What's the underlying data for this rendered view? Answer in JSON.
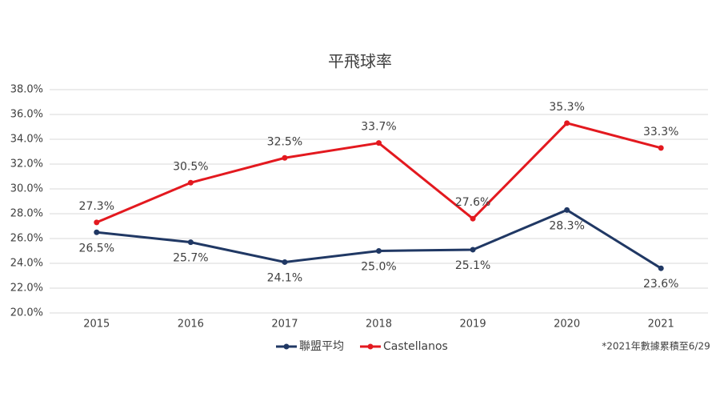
{
  "chart_data": {
    "type": "line",
    "title": "平飛球率",
    "categories": [
      "2015",
      "2016",
      "2017",
      "2018",
      "2019",
      "2020",
      "2021"
    ],
    "series": [
      {
        "name": "聯盟平均",
        "color": "#203864",
        "values": [
          26.5,
          25.7,
          24.1,
          25.0,
          25.1,
          28.3,
          23.6
        ],
        "value_labels": [
          "26.5%",
          "25.7%",
          "24.1%",
          "25.0%",
          "25.1%",
          "28.3%",
          "23.6%"
        ]
      },
      {
        "name": "Castellanos",
        "color": "#e3191f",
        "values": [
          27.3,
          30.5,
          32.5,
          33.7,
          27.6,
          35.3,
          33.3
        ],
        "value_labels": [
          "27.3%",
          "30.5%",
          "32.5%",
          "33.7%",
          "27.6%",
          "35.3%",
          "33.3%"
        ]
      }
    ],
    "ylim": [
      20,
      38
    ],
    "yticks": [
      {
        "value": 20,
        "label": "20.0%"
      },
      {
        "value": 22,
        "label": "22.0%"
      },
      {
        "value": 24,
        "label": "24.0%"
      },
      {
        "value": 26,
        "label": "26.0%"
      },
      {
        "value": 28,
        "label": "28.0%"
      },
      {
        "value": 30,
        "label": "30.0%"
      },
      {
        "value": 32,
        "label": "32.0%"
      },
      {
        "value": 34,
        "label": "34.0%"
      },
      {
        "value": 36,
        "label": "36.0%"
      },
      {
        "value": 38,
        "label": "38.0%"
      }
    ],
    "grid": true,
    "legend_position": "bottom",
    "note": "*2021年數據累積至6/29"
  }
}
